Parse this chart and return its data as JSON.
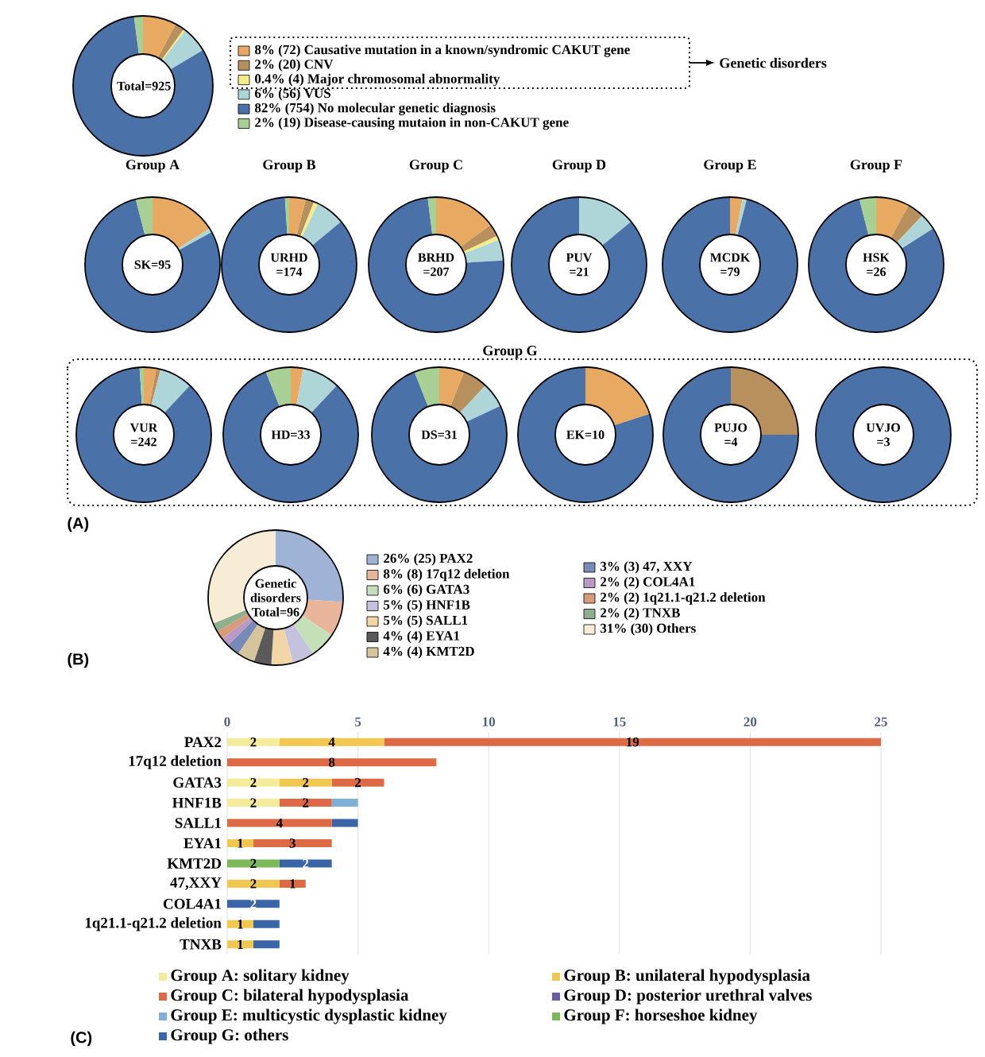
{
  "chart_data": [
    {
      "type": "donut",
      "categories": [
        "8% (72) Causative mutation in a known/syndromic CAKUT gene",
        "2% (20) CNV",
        "0.4% (4) Major chromosomal abnormality",
        "6% (56) VUS",
        "82% (754) No molecular genetic diagnosis",
        "2% (19) Disease-causing mutaion in non-CAKUT gene"
      ],
      "values": [
        72,
        20,
        4,
        56,
        754,
        19
      ],
      "colors": [
        "#e8a963",
        "#b8905e",
        "#f5ec8a",
        "#aed6d8",
        "#4a72a8",
        "#a8cf94"
      ],
      "legend": "right",
      "annotations": [
        "Total=925",
        "Genetic disorders",
        "(A)"
      ]
    },
    {
      "type": "donut",
      "title": "Group A",
      "categories": [
        null,
        null,
        null,
        null,
        null,
        null
      ],
      "values": [
        16,
        0,
        0,
        1,
        79,
        4
      ],
      "colors": [
        "#e8a963",
        "#b8905e",
        "#f5ec8a",
        "#aed6d8",
        "#4a72a8",
        "#a8cf94"
      ],
      "annotations": [
        "SK=95"
      ]
    },
    {
      "type": "donut",
      "title": "Group B",
      "categories": [
        null,
        null,
        null,
        null,
        null,
        null
      ],
      "values": [
        4,
        2,
        1,
        7,
        85,
        1
      ],
      "colors": [
        "#e8a963",
        "#b8905e",
        "#f5ec8a",
        "#aed6d8",
        "#4a72a8",
        "#a8cf94"
      ],
      "annotations": [
        "URHD =174"
      ]
    },
    {
      "type": "donut",
      "title": "Group C",
      "categories": [
        null,
        null,
        null,
        null,
        null,
        null
      ],
      "values": [
        15,
        3,
        1,
        5,
        74,
        2
      ],
      "colors": [
        "#e8a963",
        "#b8905e",
        "#f5ec8a",
        "#aed6d8",
        "#4a72a8",
        "#a8cf94"
      ],
      "annotations": [
        "BRHD =207"
      ]
    },
    {
      "type": "donut",
      "title": "Group D",
      "categories": [
        null,
        null,
        null,
        null,
        null,
        null
      ],
      "values": [
        0,
        0,
        0,
        14,
        86,
        0
      ],
      "colors": [
        "#e8a963",
        "#b8905e",
        "#f5ec8a",
        "#aed6d8",
        "#4a72a8",
        "#a8cf94"
      ],
      "annotations": [
        "PUV =21"
      ]
    },
    {
      "type": "donut",
      "title": "Group E",
      "categories": [
        null,
        null,
        null,
        null,
        null,
        null
      ],
      "values": [
        3,
        0,
        0,
        1,
        96,
        0
      ],
      "colors": [
        "#e8a963",
        "#b8905e",
        "#f5ec8a",
        "#aed6d8",
        "#4a72a8",
        "#a8cf94"
      ],
      "annotations": [
        "MCDK =79"
      ]
    },
    {
      "type": "donut",
      "title": "Group F",
      "categories": [
        null,
        null,
        null,
        null,
        null,
        null
      ],
      "values": [
        8,
        4,
        0,
        4,
        80,
        4
      ],
      "colors": [
        "#e8a963",
        "#b8905e",
        "#f5ec8a",
        "#aed6d8",
        "#4a72a8",
        "#a8cf94"
      ],
      "annotations": [
        "HSK =26"
      ]
    },
    {
      "type": "donut",
      "categories": [
        null,
        null,
        null,
        null,
        null,
        null
      ],
      "values": [
        3,
        1,
        0,
        8,
        87,
        1
      ],
      "colors": [
        "#e8a963",
        "#b8905e",
        "#f5ec8a",
        "#aed6d8",
        "#4a72a8",
        "#a8cf94"
      ],
      "annotations": [
        "VUR =242",
        "Group G"
      ]
    },
    {
      "type": "donut",
      "categories": [
        null,
        null,
        null,
        null,
        null,
        null
      ],
      "values": [
        3,
        0,
        0,
        9,
        82,
        6
      ],
      "colors": [
        "#e8a963",
        "#b8905e",
        "#f5ec8a",
        "#aed6d8",
        "#4a72a8",
        "#a8cf94"
      ],
      "annotations": [
        "HD=33"
      ]
    },
    {
      "type": "donut",
      "categories": [
        null,
        null,
        null,
        null,
        null,
        null
      ],
      "values": [
        6,
        6,
        0,
        6,
        76,
        6
      ],
      "colors": [
        "#e8a963",
        "#b8905e",
        "#f5ec8a",
        "#aed6d8",
        "#4a72a8",
        "#a8cf94"
      ],
      "annotations": [
        "DS=31"
      ]
    },
    {
      "type": "donut",
      "categories": [
        null,
        null,
        null,
        null,
        null,
        null
      ],
      "values": [
        20,
        0,
        0,
        0,
        80,
        0
      ],
      "colors": [
        "#e8a963",
        "#b8905e",
        "#f5ec8a",
        "#aed6d8",
        "#4a72a8",
        "#a8cf94"
      ],
      "annotations": [
        "EK=10"
      ]
    },
    {
      "type": "donut",
      "categories": [
        null,
        null,
        null,
        null,
        null,
        null
      ],
      "values": [
        0,
        25,
        0,
        0,
        75,
        0
      ],
      "colors": [
        "#e8a963",
        "#b8905e",
        "#f5ec8a",
        "#aed6d8",
        "#4a72a8",
        "#a8cf94"
      ],
      "annotations": [
        "PUJO =4"
      ]
    },
    {
      "type": "donut",
      "categories": [
        null,
        null,
        null,
        null,
        null,
        null
      ],
      "values": [
        0,
        0,
        0,
        0,
        100,
        0
      ],
      "colors": [
        "#e8a963",
        "#b8905e",
        "#f5ec8a",
        "#aed6d8",
        "#4a72a8",
        "#a8cf94"
      ],
      "annotations": [
        "UVJO =3"
      ]
    },
    {
      "type": "donut",
      "categories": [
        "26% (25) PAX2",
        "8% (8) 17q12 deletion",
        "6% (6) GATA3",
        "5% (5) HNF1B",
        "5% (5) SALL1",
        "4% (4) EYA1",
        "4% (4) KMT2D",
        "3% (3) 47, XXY",
        "2% (2) COL4A1",
        "2% (2) 1q21.1-q21.2 deletion",
        "2% (2) TNXB",
        "31% (30) Others"
      ],
      "values": [
        25,
        8,
        6,
        5,
        5,
        4,
        4,
        3,
        2,
        2,
        2,
        30
      ],
      "colors": [
        "#9fb3d6",
        "#e8b49a",
        "#c5e0b8",
        "#c4c2de",
        "#f2d6a8",
        "#5a5a5a",
        "#d6c49a",
        "#7a8ab8",
        "#b89ac4",
        "#d99a7a",
        "#8fb08f",
        "#f7ecd6"
      ],
      "legend": "right",
      "annotations": [
        "Genetic disorders Total=96",
        "(B)"
      ]
    },
    {
      "type": "bar",
      "orientation": "horizontal",
      "stacked": true,
      "categories": [
        "PAX2",
        "17q12 deletion",
        "GATA3",
        "HNF1B",
        "SALL1",
        "EYA1",
        "KMT2D",
        "47,XXY",
        "COL4A1",
        "1q21.1-q21.2 deletion",
        "TNXB"
      ],
      "xlim": [
        0,
        25
      ],
      "xticks": [
        0,
        5,
        10,
        15,
        20,
        25
      ],
      "grid": "x",
      "legend": "bottom",
      "annotations": [
        "(C)"
      ],
      "series": [
        {
          "name": "Group A: solitary kidney",
          "color": "#f4ec9a",
          "values": [
            2,
            null,
            2,
            2,
            null,
            null,
            null,
            null,
            null,
            null,
            null
          ],
          "value_labels": [
            "2",
            null,
            "2",
            "2",
            null,
            null,
            null,
            null,
            null,
            null,
            null
          ]
        },
        {
          "name": "Group B: unilateral hypodysplasia",
          "color": "#f0c850",
          "values": [
            4,
            null,
            2,
            null,
            null,
            1,
            null,
            2,
            null,
            1,
            1
          ],
          "value_labels": [
            "4",
            null,
            "2",
            null,
            null,
            "1",
            null,
            "2",
            null,
            "1",
            "1"
          ]
        },
        {
          "name": "Group C: bilateral hypodysplasia",
          "color": "#dd6a45",
          "values": [
            19,
            8,
            2,
            2,
            4,
            3,
            null,
            1,
            null,
            null,
            null
          ],
          "value_labels": [
            "19",
            "8",
            "2",
            "2",
            "4",
            "3",
            null,
            "1",
            null,
            null,
            null
          ]
        },
        {
          "name": "Group D: posterior urethral valves",
          "color": "#6a5aa8",
          "values": [
            null,
            null,
            null,
            null,
            null,
            null,
            null,
            null,
            null,
            null,
            null
          ]
        },
        {
          "name": "Group E: multicystic dysplastic kidney",
          "color": "#7fb0d8",
          "values": [
            null,
            null,
            null,
            1,
            null,
            null,
            null,
            null,
            null,
            null,
            null
          ]
        },
        {
          "name": "Group F: horseshoe kidney",
          "color": "#7cb95a",
          "values": [
            null,
            null,
            null,
            null,
            null,
            null,
            2,
            null,
            null,
            null,
            null
          ],
          "value_labels": [
            null,
            null,
            null,
            null,
            null,
            null,
            "2",
            null,
            null,
            null,
            null
          ]
        },
        {
          "name": "Group G: others",
          "color": "#3a66a8",
          "values": [
            null,
            null,
            null,
            null,
            1,
            null,
            2,
            null,
            2,
            1,
            1
          ],
          "value_labels": [
            null,
            null,
            null,
            null,
            null,
            null,
            "2",
            null,
            "2",
            null,
            null
          ]
        }
      ]
    }
  ]
}
